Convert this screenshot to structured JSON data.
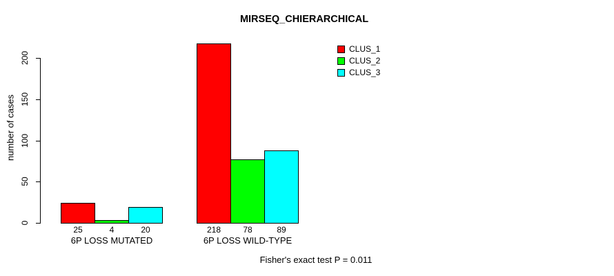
{
  "chart_data": {
    "type": "bar",
    "title": "MIRSEQ_CHIERARCHICAL",
    "ylabel": "number of cases",
    "xlabel": "",
    "categories": [
      "6P LOSS MUTATED",
      "6P LOSS WILD-TYPE"
    ],
    "series": [
      {
        "name": "CLUS_1",
        "color": "#ff0000",
        "values": [
          25,
          218
        ]
      },
      {
        "name": "CLUS_2",
        "color": "#00ff00",
        "values": [
          4,
          78
        ]
      },
      {
        "name": "CLUS_3",
        "color": "#00ffff",
        "values": [
          20,
          89
        ]
      }
    ],
    "yticks": [
      0,
      50,
      100,
      150,
      200
    ],
    "ylim": [
      0,
      218
    ],
    "grid": false,
    "bar_value_labels_shown": true,
    "legend_position": "top-right",
    "annotation": "Fisher's exact test P = 0.011"
  }
}
